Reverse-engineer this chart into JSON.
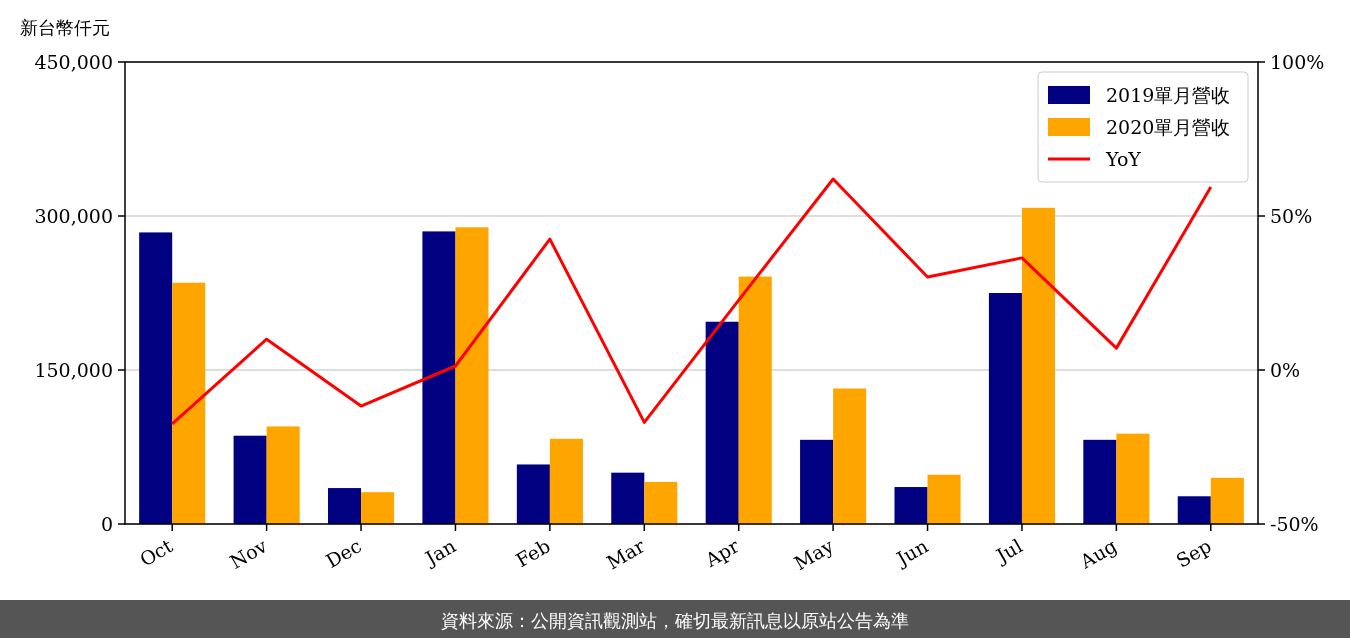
{
  "chart_data": {
    "type": "bar",
    "ylabel": "新台幣仟元",
    "categories": [
      "Oct",
      "Nov",
      "Dec",
      "Jan",
      "Feb",
      "Mar",
      "Apr",
      "May",
      "Jun",
      "Jul",
      "Aug",
      "Sep"
    ],
    "series": [
      {
        "name": "2019單月營收",
        "color": "#000080",
        "values": [
          284000,
          86000,
          35000,
          285000,
          58000,
          50000,
          197000,
          82000,
          36000,
          225000,
          82000,
          27000
        ]
      },
      {
        "name": "2020單月營收",
        "color": "#ffa500",
        "values": [
          235000,
          95000,
          31000,
          289000,
          83000,
          41000,
          241000,
          132000,
          48000,
          308000,
          88000,
          45000
        ]
      },
      {
        "name": "YoY",
        "type": "line",
        "axis": "y2",
        "color": "#ff0000",
        "values": [
          -17.5,
          10,
          -11.7,
          1.3,
          42.5,
          -17,
          22.7,
          62,
          30.2,
          36.4,
          7.1,
          59.4
        ]
      }
    ],
    "ylim": [
      0,
      450000
    ],
    "yticks": [
      {
        "value": 0,
        "label": "0"
      },
      {
        "value": 150000,
        "label": "150,000"
      },
      {
        "value": 300000,
        "label": "300,000"
      },
      {
        "value": 450000,
        "label": "450,000"
      }
    ],
    "y2lim": [
      -50,
      100
    ],
    "y2ticks": [
      {
        "value": -50,
        "label": "-50%"
      },
      {
        "value": 0,
        "label": "0%"
      },
      {
        "value": 50,
        "label": "50%"
      },
      {
        "value": 100,
        "label": "100%"
      }
    ],
    "grid": "y",
    "legend": "top right",
    "annotations": [
      "資料來源：公開資訊觀測站，確切最新訊息以原站公告為準"
    ]
  }
}
